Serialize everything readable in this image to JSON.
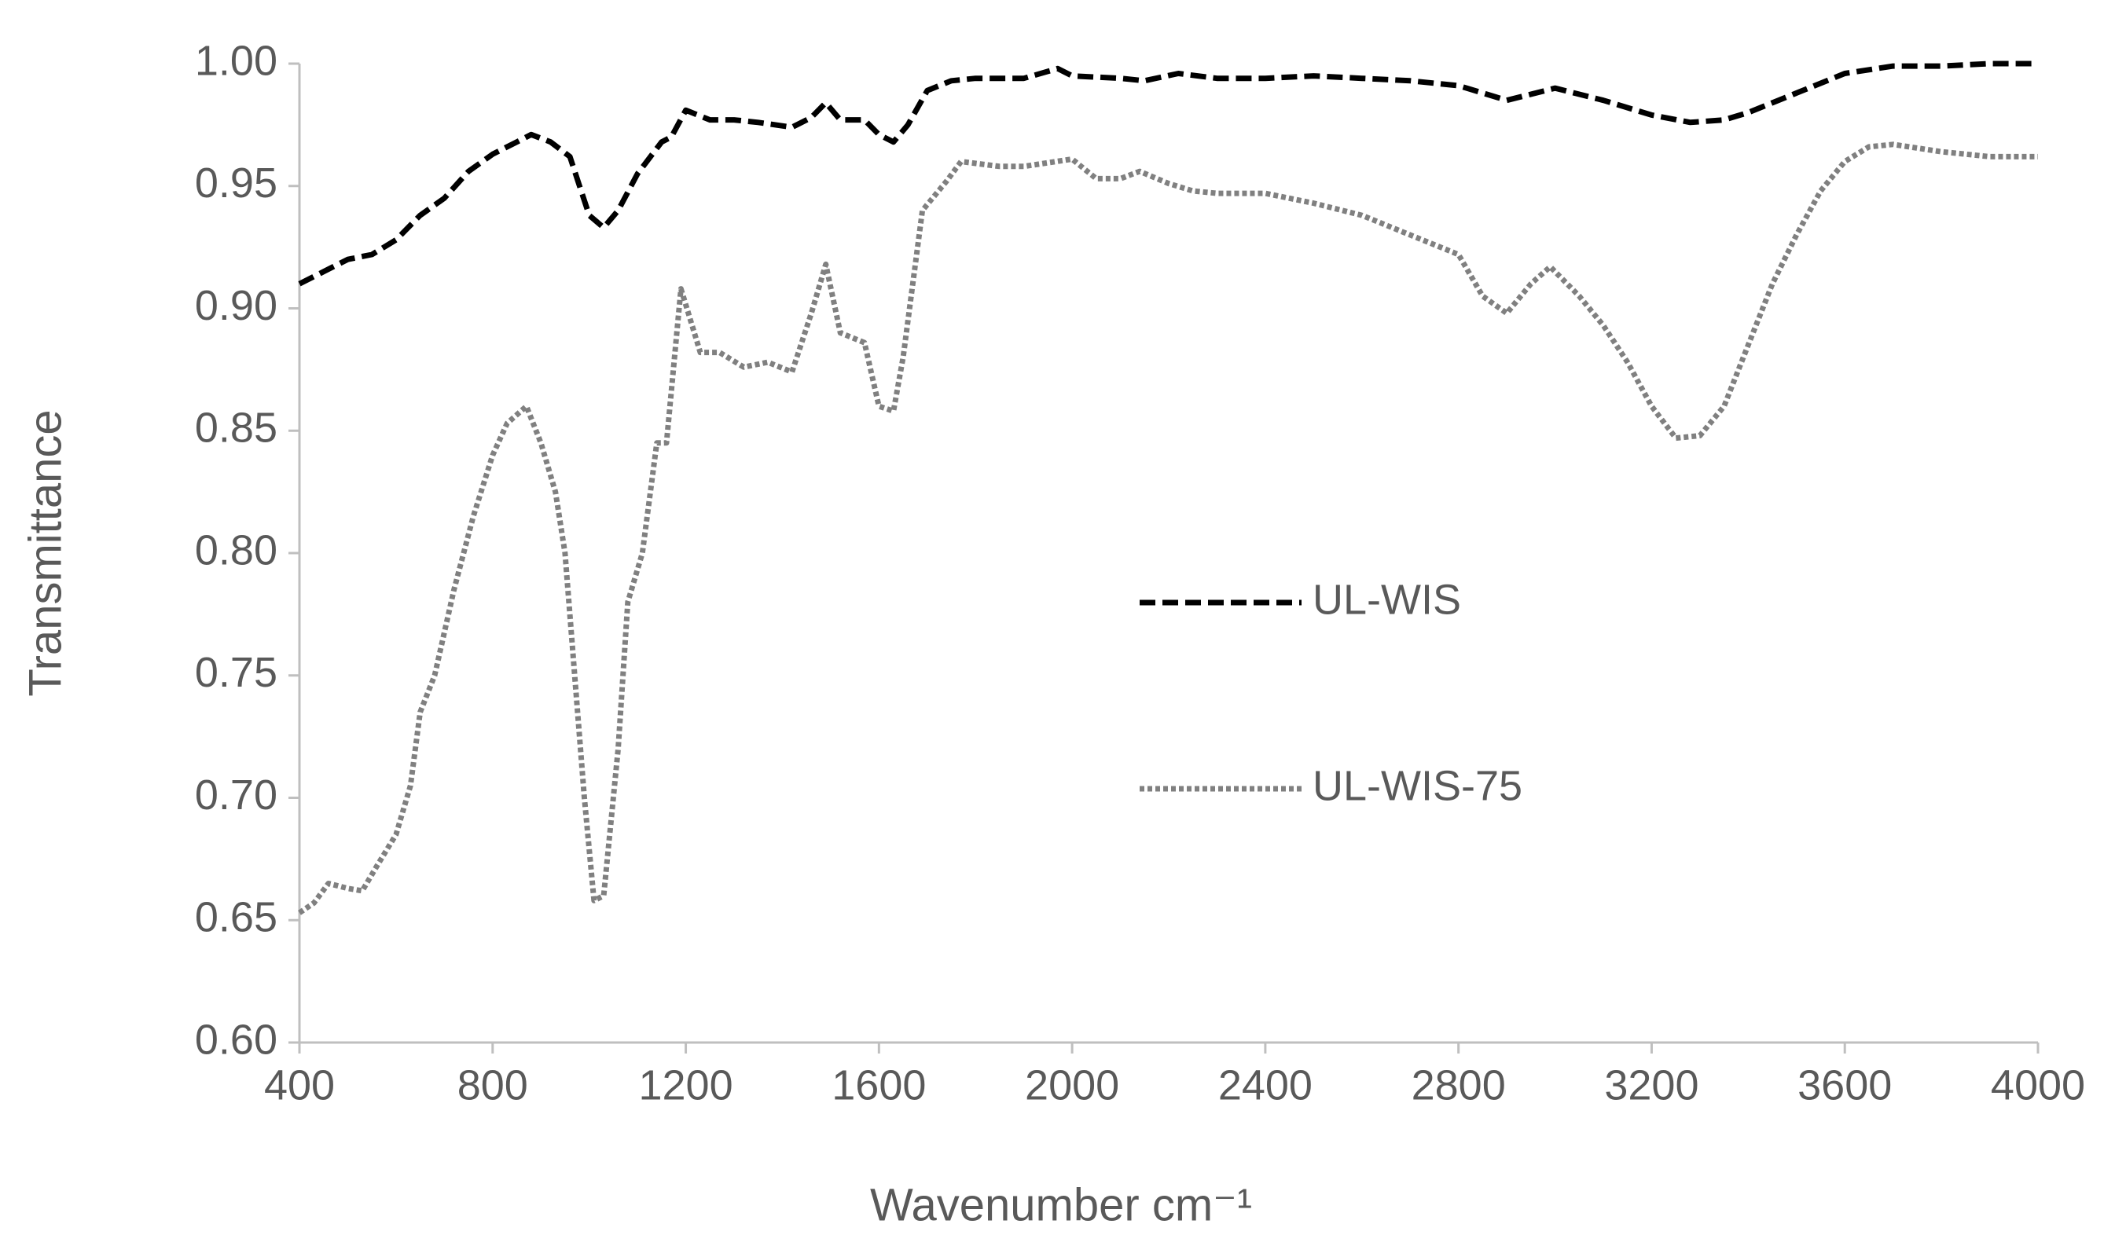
{
  "chart_data": {
    "type": "line",
    "x_label": "Wavenumber cm⁻¹",
    "y_label": "Transmittance",
    "xlim": [
      400,
      4000
    ],
    "xticks": [
      400,
      800,
      1200,
      1600,
      2000,
      2400,
      2800,
      3200,
      3600,
      4000
    ],
    "ylim": [
      0.6,
      1.0
    ],
    "yticks": [
      {
        "value": 0.6,
        "label": "0.60"
      },
      0.65,
      {
        "value": 0.7,
        "label": "0.70"
      },
      0.75,
      {
        "value": 0.8,
        "label": "0.80"
      },
      0.85,
      {
        "value": 0.9,
        "label": "0.90"
      },
      0.95,
      {
        "value": 1.0,
        "label": "1.00"
      }
    ],
    "grid": false,
    "legend": "center",
    "series": [
      {
        "name": "UL-WIS",
        "color": "#000000",
        "style": "dashed",
        "x": [
          400,
          450,
          500,
          550,
          600,
          650,
          700,
          750,
          800,
          850,
          880,
          920,
          960,
          980,
          1000,
          1030,
          1060,
          1100,
          1150,
          1170,
          1200,
          1250,
          1300,
          1350,
          1420,
          1460,
          1490,
          1520,
          1570,
          1600,
          1630,
          1660,
          1700,
          1750,
          1800,
          1900,
          1970,
          2000,
          2100,
          2150,
          2220,
          2300,
          2400,
          2500,
          2600,
          2700,
          2800,
          2900,
          3000,
          3100,
          3200,
          3280,
          3350,
          3400,
          3500,
          3600,
          3700,
          3800,
          3900,
          4000
        ],
        "values": [
          0.91,
          0.915,
          0.92,
          0.922,
          0.928,
          0.938,
          0.945,
          0.956,
          0.963,
          0.968,
          0.971,
          0.968,
          0.962,
          0.95,
          0.938,
          0.933,
          0.94,
          0.955,
          0.968,
          0.97,
          0.981,
          0.977,
          0.977,
          0.976,
          0.974,
          0.978,
          0.984,
          0.977,
          0.977,
          0.971,
          0.968,
          0.975,
          0.989,
          0.993,
          0.994,
          0.994,
          0.998,
          0.995,
          0.994,
          0.993,
          0.996,
          0.994,
          0.994,
          0.995,
          0.994,
          0.993,
          0.991,
          0.985,
          0.99,
          0.985,
          0.979,
          0.976,
          0.977,
          0.98,
          0.988,
          0.996,
          0.999,
          0.999,
          1.0,
          1.0
        ]
      },
      {
        "name": "UL-WIS-75",
        "color": "#808080",
        "style": "dotted",
        "x": [
          400,
          430,
          460,
          500,
          530,
          560,
          600,
          630,
          650,
          680,
          720,
          760,
          800,
          830,
          870,
          900,
          930,
          950,
          970,
          990,
          1010,
          1030,
          1060,
          1080,
          1110,
          1140,
          1160,
          1190,
          1230,
          1270,
          1320,
          1370,
          1420,
          1460,
          1490,
          1520,
          1570,
          1600,
          1630,
          1650,
          1690,
          1740,
          1770,
          1850,
          1900,
          2000,
          2050,
          2100,
          2140,
          2200,
          2250,
          2300,
          2400,
          2500,
          2600,
          2700,
          2800,
          2850,
          2900,
          2950,
          2990,
          3050,
          3100,
          3150,
          3200,
          3250,
          3300,
          3350,
          3400,
          3450,
          3500,
          3550,
          3600,
          3650,
          3700,
          3800,
          3900,
          4000
        ],
        "values": [
          0.653,
          0.657,
          0.665,
          0.663,
          0.662,
          0.672,
          0.685,
          0.705,
          0.735,
          0.75,
          0.785,
          0.815,
          0.84,
          0.853,
          0.86,
          0.845,
          0.825,
          0.8,
          0.75,
          0.7,
          0.658,
          0.66,
          0.72,
          0.78,
          0.8,
          0.845,
          0.845,
          0.908,
          0.882,
          0.882,
          0.876,
          0.878,
          0.874,
          0.898,
          0.918,
          0.89,
          0.886,
          0.86,
          0.858,
          0.88,
          0.94,
          0.952,
          0.96,
          0.958,
          0.958,
          0.961,
          0.953,
          0.953,
          0.956,
          0.951,
          0.948,
          0.947,
          0.947,
          0.943,
          0.938,
          0.93,
          0.922,
          0.905,
          0.898,
          0.91,
          0.917,
          0.905,
          0.893,
          0.878,
          0.86,
          0.847,
          0.848,
          0.86,
          0.885,
          0.91,
          0.93,
          0.948,
          0.96,
          0.966,
          0.967,
          0.964,
          0.962,
          0.962
        ]
      }
    ]
  }
}
